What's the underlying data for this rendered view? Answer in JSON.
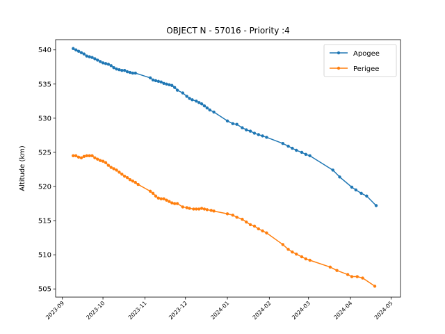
{
  "chart_data": {
    "type": "line",
    "title": "OBJECT N - 57016 - Priority :4",
    "xlabel": "",
    "ylabel": "Altitude (km)",
    "x_ticks": [
      "2023-09",
      "2023-10",
      "2023-11",
      "2023-12",
      "2024-01",
      "2024-02",
      "2024-03",
      "2024-04",
      "2024-05"
    ],
    "y_ticks": [
      505,
      510,
      515,
      520,
      525,
      530,
      535,
      540
    ],
    "xlim": [
      "2023-08-27",
      "2024-05-08"
    ],
    "ylim": [
      503.8,
      541.5
    ],
    "grid": false,
    "legend": "top-right",
    "series": [
      {
        "name": "Apogee",
        "color": "#1f77b4",
        "points": [
          [
            "2023-09-09",
            540.2
          ],
          [
            "2023-09-11",
            540.0
          ],
          [
            "2023-09-13",
            539.8
          ],
          [
            "2023-09-15",
            539.6
          ],
          [
            "2023-09-17",
            539.4
          ],
          [
            "2023-09-19",
            539.1
          ],
          [
            "2023-09-21",
            539.0
          ],
          [
            "2023-09-23",
            538.9
          ],
          [
            "2023-09-25",
            538.7
          ],
          [
            "2023-09-27",
            538.5
          ],
          [
            "2023-09-29",
            538.3
          ],
          [
            "2023-10-01",
            538.1
          ],
          [
            "2023-10-03",
            538.0
          ],
          [
            "2023-10-05",
            537.9
          ],
          [
            "2023-10-07",
            537.7
          ],
          [
            "2023-10-09",
            537.4
          ],
          [
            "2023-10-11",
            537.2
          ],
          [
            "2023-10-13",
            537.1
          ],
          [
            "2023-10-15",
            537.0
          ],
          [
            "2023-10-17",
            537.0
          ],
          [
            "2023-10-19",
            536.8
          ],
          [
            "2023-10-21",
            536.7
          ],
          [
            "2023-10-23",
            536.6
          ],
          [
            "2023-10-25",
            536.6
          ],
          [
            "2023-11-05",
            535.9
          ],
          [
            "2023-11-07",
            535.6
          ],
          [
            "2023-11-09",
            535.5
          ],
          [
            "2023-11-11",
            535.4
          ],
          [
            "2023-11-13",
            535.3
          ],
          [
            "2023-11-15",
            535.1
          ],
          [
            "2023-11-17",
            535.0
          ],
          [
            "2023-11-19",
            534.9
          ],
          [
            "2023-11-21",
            534.8
          ],
          [
            "2023-11-23",
            534.5
          ],
          [
            "2023-11-25",
            534.1
          ],
          [
            "2023-11-29",
            533.7
          ],
          [
            "2023-12-02",
            533.2
          ],
          [
            "2023-12-04",
            532.9
          ],
          [
            "2023-12-06",
            532.7
          ],
          [
            "2023-12-09",
            532.5
          ],
          [
            "2023-12-11",
            532.3
          ],
          [
            "2023-12-13",
            532.1
          ],
          [
            "2023-12-15",
            531.8
          ],
          [
            "2023-12-17",
            531.5
          ],
          [
            "2023-12-19",
            531.2
          ],
          [
            "2023-12-22",
            530.9
          ],
          [
            "2024-01-01",
            529.6
          ],
          [
            "2024-01-05",
            529.2
          ],
          [
            "2024-01-08",
            529.1
          ],
          [
            "2024-01-12",
            528.6
          ],
          [
            "2024-01-15",
            528.3
          ],
          [
            "2024-01-18",
            528.1
          ],
          [
            "2024-01-21",
            527.8
          ],
          [
            "2024-01-24",
            527.6
          ],
          [
            "2024-01-27",
            527.4
          ],
          [
            "2024-01-30",
            527.2
          ],
          [
            "2024-02-11",
            526.3
          ],
          [
            "2024-02-15",
            525.9
          ],
          [
            "2024-02-18",
            525.6
          ],
          [
            "2024-02-21",
            525.3
          ],
          [
            "2024-02-25",
            525.0
          ],
          [
            "2024-02-28",
            524.7
          ],
          [
            "2024-03-02",
            524.5
          ],
          [
            "2024-03-19",
            522.4
          ],
          [
            "2024-03-24",
            521.4
          ],
          [
            "2024-04-02",
            519.9
          ],
          [
            "2024-04-05",
            519.5
          ],
          [
            "2024-04-09",
            519.0
          ],
          [
            "2024-04-13",
            518.6
          ],
          [
            "2024-04-20",
            517.2
          ]
        ]
      },
      {
        "name": "Perigee",
        "color": "#ff7f0e",
        "points": [
          [
            "2023-09-09",
            524.5
          ],
          [
            "2023-09-11",
            524.5
          ],
          [
            "2023-09-13",
            524.3
          ],
          [
            "2023-09-15",
            524.2
          ],
          [
            "2023-09-17",
            524.4
          ],
          [
            "2023-09-19",
            524.5
          ],
          [
            "2023-09-21",
            524.5
          ],
          [
            "2023-09-23",
            524.5
          ],
          [
            "2023-09-25",
            524.2
          ],
          [
            "2023-09-27",
            524.0
          ],
          [
            "2023-09-29",
            523.8
          ],
          [
            "2023-10-01",
            523.7
          ],
          [
            "2023-10-03",
            523.5
          ],
          [
            "2023-10-05",
            523.1
          ],
          [
            "2023-10-07",
            522.8
          ],
          [
            "2023-10-09",
            522.6
          ],
          [
            "2023-10-11",
            522.4
          ],
          [
            "2023-10-13",
            522.1
          ],
          [
            "2023-10-15",
            521.8
          ],
          [
            "2023-10-17",
            521.5
          ],
          [
            "2023-10-19",
            521.3
          ],
          [
            "2023-10-21",
            521.0
          ],
          [
            "2023-10-23",
            520.8
          ],
          [
            "2023-10-25",
            520.6
          ],
          [
            "2023-10-27",
            520.3
          ],
          [
            "2023-11-05",
            519.3
          ],
          [
            "2023-11-07",
            519.0
          ],
          [
            "2023-11-09",
            518.6
          ],
          [
            "2023-11-11",
            518.3
          ],
          [
            "2023-11-13",
            518.2
          ],
          [
            "2023-11-15",
            518.2
          ],
          [
            "2023-11-17",
            518.0
          ],
          [
            "2023-11-19",
            517.8
          ],
          [
            "2023-11-21",
            517.6
          ],
          [
            "2023-11-23",
            517.5
          ],
          [
            "2023-11-25",
            517.5
          ],
          [
            "2023-11-29",
            517.0
          ],
          [
            "2023-12-02",
            516.9
          ],
          [
            "2023-12-04",
            516.8
          ],
          [
            "2023-12-07",
            516.7
          ],
          [
            "2023-12-09",
            516.7
          ],
          [
            "2023-12-11",
            516.7
          ],
          [
            "2023-12-13",
            516.8
          ],
          [
            "2023-12-15",
            516.7
          ],
          [
            "2023-12-17",
            516.6
          ],
          [
            "2023-12-20",
            516.5
          ],
          [
            "2023-12-22",
            516.4
          ],
          [
            "2024-01-01",
            516.0
          ],
          [
            "2024-01-05",
            515.8
          ],
          [
            "2024-01-08",
            515.5
          ],
          [
            "2024-01-12",
            515.2
          ],
          [
            "2024-01-15",
            514.8
          ],
          [
            "2024-01-18",
            514.4
          ],
          [
            "2024-01-21",
            514.2
          ],
          [
            "2024-01-24",
            513.8
          ],
          [
            "2024-01-27",
            513.5
          ],
          [
            "2024-01-30",
            513.2
          ],
          [
            "2024-02-11",
            511.5
          ],
          [
            "2024-02-15",
            510.8
          ],
          [
            "2024-02-18",
            510.4
          ],
          [
            "2024-02-21",
            510.1
          ],
          [
            "2024-02-25",
            509.7
          ],
          [
            "2024-02-28",
            509.4
          ],
          [
            "2024-03-02",
            509.2
          ],
          [
            "2024-03-17",
            508.2
          ],
          [
            "2024-03-22",
            507.7
          ],
          [
            "2024-03-30",
            507.1
          ],
          [
            "2024-04-02",
            506.8
          ],
          [
            "2024-04-06",
            506.8
          ],
          [
            "2024-04-10",
            506.6
          ],
          [
            "2024-04-19",
            505.4
          ]
        ]
      }
    ]
  }
}
